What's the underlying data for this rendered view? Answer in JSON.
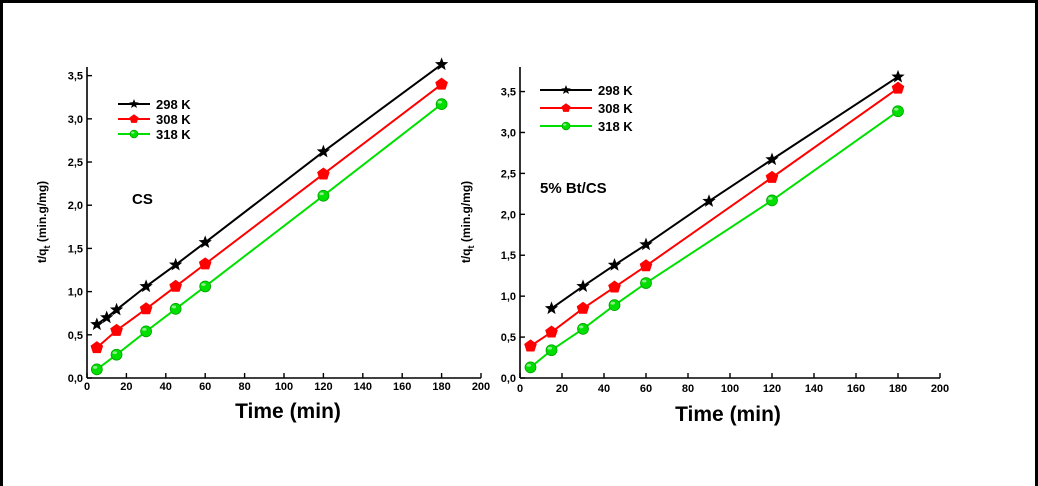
{
  "colors": {
    "298 K": "#000000",
    "308 K": "#ff0000",
    "318 K": "#00e000"
  },
  "chart_data": [
    {
      "type": "line",
      "annotation": "CS",
      "xlabel": "Time (min)",
      "ylabel_main": "t/q",
      "ylabel_sub": "t",
      "ylabel_unit": " (min.g/mg)",
      "xlim": [
        0,
        200
      ],
      "ylim": [
        0,
        3.6
      ],
      "x_ticks": [
        "0",
        "20",
        "40",
        "60",
        "80",
        "100",
        "120",
        "140",
        "160",
        "180",
        "200"
      ],
      "y_ticks": [
        "0,0",
        "0,5",
        "1,0",
        "1,5",
        "2,0",
        "2,5",
        "3,0",
        "3,5"
      ],
      "y_tick_values": [
        0,
        0.5,
        1.0,
        1.5,
        2.0,
        2.5,
        3.0,
        3.5
      ],
      "legend": [
        "298 K",
        "308 K",
        "318 K"
      ],
      "series": [
        {
          "name": "298 K",
          "marker": "star",
          "x": [
            5,
            10,
            15,
            30,
            45,
            60,
            120,
            180
          ],
          "y": [
            0.62,
            0.7,
            0.79,
            1.06,
            1.31,
            1.57,
            2.62,
            3.63
          ]
        },
        {
          "name": "308 K",
          "marker": "pentagon",
          "x": [
            5,
            15,
            30,
            45,
            60,
            120,
            180
          ],
          "y": [
            0.35,
            0.55,
            0.8,
            1.06,
            1.32,
            2.36,
            3.4
          ]
        },
        {
          "name": "318 K",
          "marker": "circle",
          "x": [
            5,
            15,
            30,
            45,
            60,
            120,
            180
          ],
          "y": [
            0.1,
            0.27,
            0.54,
            0.8,
            1.06,
            2.11,
            3.17
          ]
        }
      ]
    },
    {
      "type": "line",
      "annotation": "5% Bt/CS",
      "xlabel": "Time (min)",
      "ylabel_main": "t/q",
      "ylabel_sub": "t",
      "ylabel_unit": " (min.g/mg)",
      "xlim": [
        0,
        200
      ],
      "ylim": [
        0,
        3.8
      ],
      "x_ticks": [
        "0",
        "20",
        "40",
        "60",
        "80",
        "100",
        "120",
        "140",
        "160",
        "180",
        "200"
      ],
      "y_ticks": [
        "0,0",
        "0,5",
        "1,0",
        "1,5",
        "2,0",
        "2,5",
        "3,0",
        "3,5"
      ],
      "y_tick_values": [
        0,
        0.5,
        1.0,
        1.5,
        2.0,
        2.5,
        3.0,
        3.5
      ],
      "legend": [
        "298 K",
        "308 K",
        "318 K"
      ],
      "series": [
        {
          "name": "298 K",
          "marker": "star",
          "x": [
            15,
            30,
            45,
            60,
            90,
            120,
            180
          ],
          "y": [
            0.85,
            1.12,
            1.38,
            1.63,
            2.16,
            2.67,
            3.68
          ]
        },
        {
          "name": "308 K",
          "marker": "pentagon",
          "x": [
            5,
            15,
            30,
            45,
            60,
            120,
            180
          ],
          "y": [
            0.39,
            0.56,
            0.85,
            1.11,
            1.37,
            2.45,
            3.54
          ]
        },
        {
          "name": "318 K",
          "marker": "circle",
          "x": [
            5,
            15,
            30,
            45,
            60,
            120,
            180
          ],
          "y": [
            0.13,
            0.34,
            0.6,
            0.89,
            1.16,
            2.17,
            3.26
          ]
        }
      ]
    }
  ]
}
